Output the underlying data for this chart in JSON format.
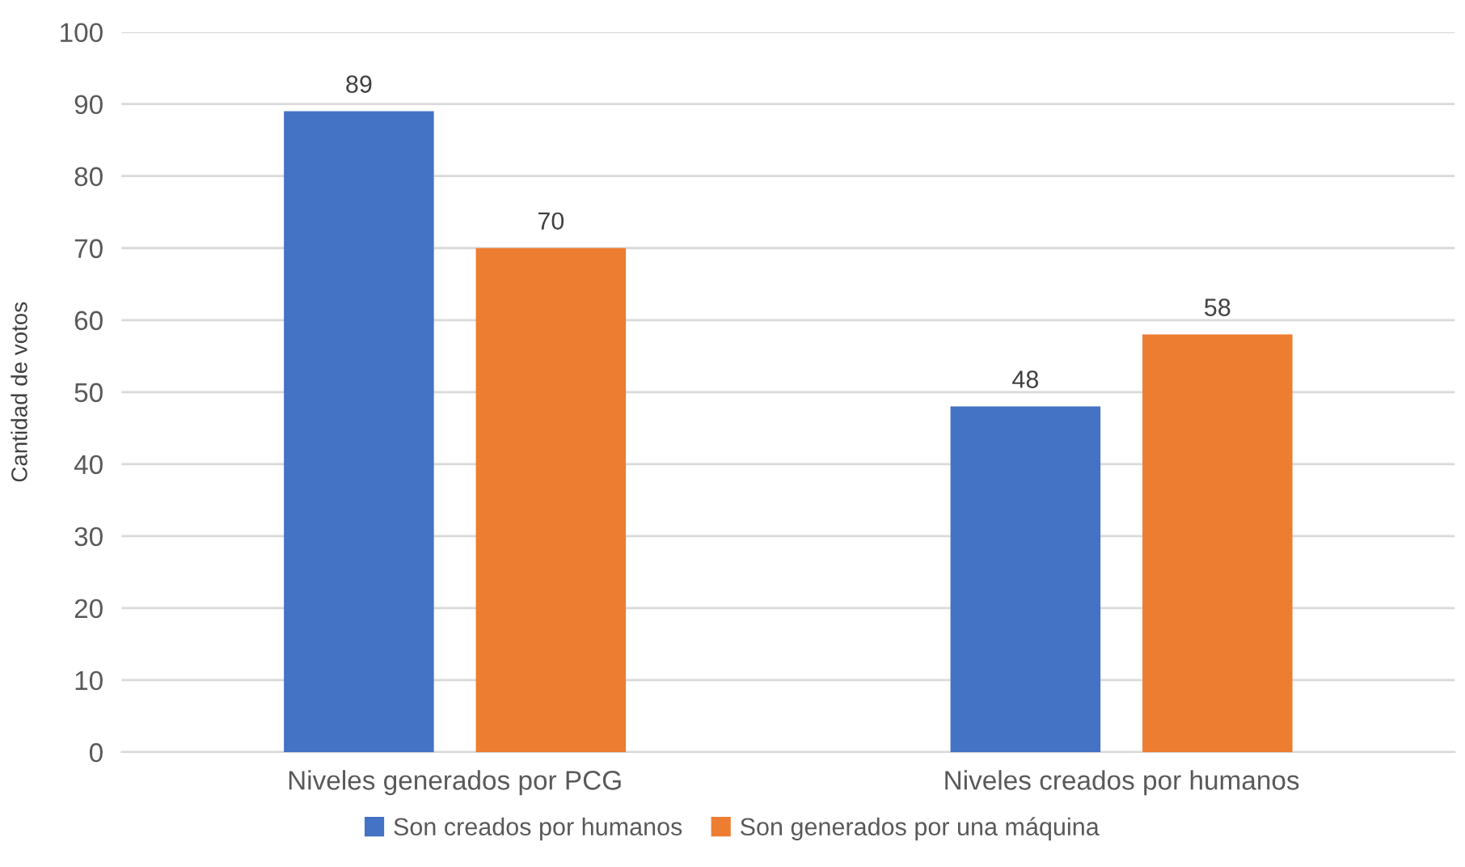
{
  "chart_data": {
    "type": "bar",
    "ylabel": "Cantidad de votos",
    "categories": [
      "Niveles generados por PCG",
      "Niveles creados por humanos"
    ],
    "series": [
      {
        "name": "Son creados por humanos",
        "color": "#4472c4",
        "values": [
          89,
          48
        ]
      },
      {
        "name": "Son generados por una máquina",
        "color": "#ed7d31",
        "values": [
          70,
          58
        ]
      }
    ],
    "ylim": [
      0,
      100
    ],
    "yticks": [
      0,
      10,
      20,
      30,
      40,
      50,
      60,
      70,
      80,
      90,
      100
    ],
    "grid": "y",
    "legend": "bottom",
    "data_labels": true
  }
}
